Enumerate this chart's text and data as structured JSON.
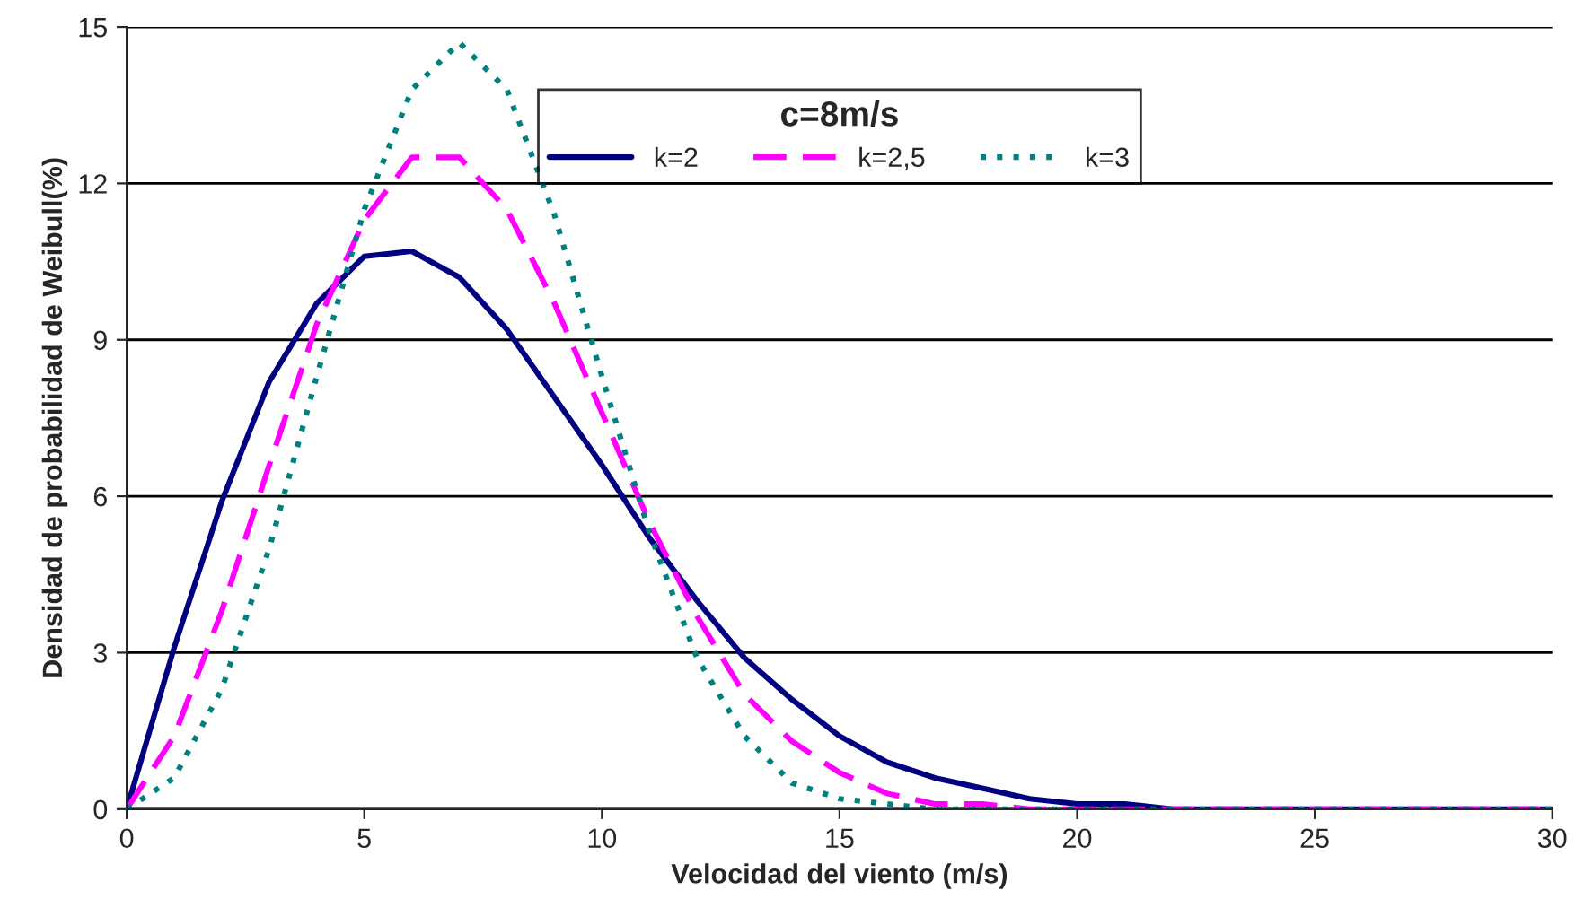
{
  "chart_data": {
    "type": "line",
    "xlabel": "Velocidad del viento (m/s)",
    "ylabel": "Densidad de probabilidad de Weibull(%)",
    "legend_title": "c=8m/s",
    "x": [
      0,
      1,
      2,
      3,
      4,
      5,
      6,
      7,
      8,
      9,
      10,
      11,
      12,
      13,
      14,
      15,
      16,
      17,
      18,
      19,
      20,
      21,
      22,
      23,
      24,
      25,
      26,
      27,
      28,
      29,
      30
    ],
    "series": [
      {
        "name": "k=2",
        "color": "#000080",
        "line_style": "solid",
        "values": [
          0,
          3.1,
          5.9,
          8.2,
          9.7,
          10.6,
          10.7,
          10.2,
          9.2,
          7.9,
          6.6,
          5.2,
          4.0,
          2.9,
          2.1,
          1.4,
          0.9,
          0.6,
          0.4,
          0.2,
          0.1,
          0.1,
          0,
          0,
          0,
          0,
          0,
          0,
          0,
          0,
          0
        ]
      },
      {
        "name": "k=2,5",
        "color": "#ff00ff",
        "line_style": "dashed",
        "values": [
          0,
          1.4,
          3.8,
          6.6,
          9.3,
          11.3,
          12.5,
          12.5,
          11.5,
          9.7,
          7.6,
          5.5,
          3.7,
          2.2,
          1.3,
          0.7,
          0.3,
          0.1,
          0.1,
          0,
          0,
          0,
          0,
          0,
          0,
          0,
          0,
          0,
          0,
          0,
          0
        ]
      },
      {
        "name": "k=3",
        "color": "#008080",
        "line_style": "dotted",
        "values": [
          0,
          0.6,
          2.3,
          5.0,
          8.3,
          11.5,
          13.8,
          14.7,
          13.8,
          11.4,
          8.3,
          5.3,
          2.9,
          1.4,
          0.5,
          0.2,
          0.1,
          0,
          0,
          0,
          0,
          0,
          0,
          0,
          0,
          0,
          0,
          0,
          0,
          0,
          0
        ]
      }
    ],
    "xlim": [
      0,
      30
    ],
    "xticks": [
      0,
      5,
      10,
      15,
      20,
      25,
      30
    ],
    "ylim": [
      0,
      15
    ],
    "yticks": [
      0,
      3,
      6,
      9,
      12,
      15
    ],
    "grid": "y",
    "legend": "top",
    "marker": "none"
  }
}
